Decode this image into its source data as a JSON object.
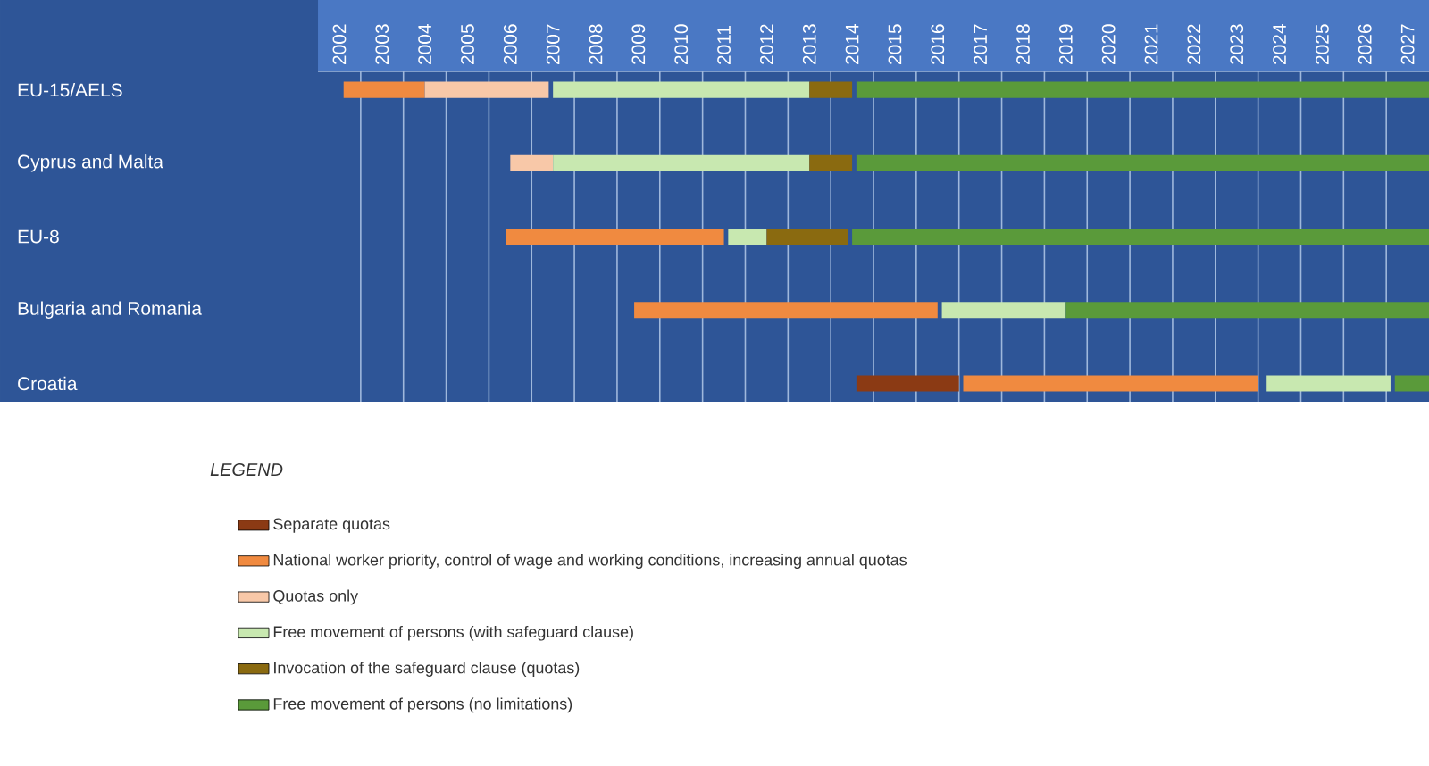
{
  "chart_data": {
    "type": "bar",
    "orientation": "horizontal",
    "categories": [
      "EU-15/AELS",
      "Cyprus and Malta",
      "EU-8",
      "Bulgaria and Romania",
      "Croatia"
    ],
    "series": [
      {
        "name": "Separate quotas",
        "color": "#8b3a14",
        "base": [
          null,
          null,
          null,
          null,
          2014.6
        ],
        "values": [
          null,
          null,
          null,
          null,
          2.4
        ]
      },
      {
        "name": "National worker priority, control of wage and working conditions, increasing annual quotas",
        "color": "#f08a40",
        "base": [
          2002.6,
          null,
          2006.4,
          2009.4,
          2017.1
        ],
        "values": [
          1.9,
          null,
          5.1,
          7.1,
          6.9
        ]
      },
      {
        "name": "Quotas only",
        "color": "#f8c8a8",
        "base": [
          2004.5,
          2006.5,
          null,
          null,
          null
        ],
        "values": [
          2.9,
          1.0,
          null,
          null,
          null
        ]
      },
      {
        "name": "Free movement of persons (with safeguard clause)",
        "color": "#c8e8b0",
        "base": [
          2007.5,
          2007.5,
          2011.6,
          2016.6,
          2024.2
        ],
        "values": [
          6.0,
          6.0,
          0.9,
          2.9,
          2.9
        ]
      },
      {
        "name": "Invocation of the safeguard clause (quotas)",
        "color": "#8a6a10",
        "base": [
          2013.5,
          2013.5,
          2012.5,
          null,
          null
        ],
        "values": [
          1.0,
          1.0,
          1.9,
          null,
          null
        ]
      },
      {
        "name": "Free movement of persons (no limitations)",
        "color": "#5a9a3a",
        "base": [
          2014.6,
          2014.6,
          2014.5,
          2019.5,
          2027.2
        ],
        "values": [
          13.4,
          13.4,
          13.5,
          8.5,
          0.8
        ]
      }
    ],
    "xlim": [
      2002,
      2028
    ],
    "xticks": [
      {
        "value": 2002.5,
        "label": "2002"
      },
      {
        "value": 2003.5,
        "label": "2003"
      },
      {
        "value": 2004.5,
        "label": "2004"
      },
      {
        "value": 2005.5,
        "label": "2005"
      },
      {
        "value": 2006.5,
        "label": "2006"
      },
      {
        "value": 2007.5,
        "label": "2007"
      },
      {
        "value": 2008.5,
        "label": "2008"
      },
      {
        "value": 2009.5,
        "label": "2009"
      },
      {
        "value": 2010.5,
        "label": "2010"
      },
      {
        "value": 2011.5,
        "label": "2011"
      },
      {
        "value": 2012.5,
        "label": "2012"
      },
      {
        "value": 2013.5,
        "label": "2013"
      },
      {
        "value": 2014.5,
        "label": "2014"
      },
      {
        "value": 2015.5,
        "label": "2015"
      },
      {
        "value": 2016.5,
        "label": "2016"
      },
      {
        "value": 2017.5,
        "label": "2017"
      },
      {
        "value": 2018.5,
        "label": "2018"
      },
      {
        "value": 2019.5,
        "label": "2019"
      },
      {
        "value": 2020.5,
        "label": "2020"
      },
      {
        "value": 2021.5,
        "label": "2021"
      },
      {
        "value": 2022.5,
        "label": "2022"
      },
      {
        "value": 2023.5,
        "label": "2023"
      },
      {
        "value": 2024.5,
        "label": "2024"
      },
      {
        "value": 2025.5,
        "label": "2025"
      },
      {
        "value": 2026.5,
        "label": "2026"
      },
      {
        "value": 2027.5,
        "label": "2027"
      },
      {
        "value": 2003,
        "label": null
      },
      {
        "value": 2004,
        "label": null
      },
      {
        "value": 2005,
        "label": null
      },
      {
        "value": 2006,
        "label": null
      },
      {
        "value": 2007,
        "label": null
      },
      {
        "value": 2008,
        "label": null
      },
      {
        "value": 2009,
        "label": null
      },
      {
        "value": 2010,
        "label": null
      },
      {
        "value": 2011,
        "label": null
      },
      {
        "value": 2012,
        "label": null
      },
      {
        "value": 2013,
        "label": null
      },
      {
        "value": 2014,
        "label": null
      },
      {
        "value": 2015,
        "label": null
      },
      {
        "value": 2016,
        "label": null
      },
      {
        "value": 2017,
        "label": null
      },
      {
        "value": 2018,
        "label": null
      },
      {
        "value": 2019,
        "label": null
      },
      {
        "value": 2020,
        "label": null
      },
      {
        "value": 2021,
        "label": null
      },
      {
        "value": 2022,
        "label": null
      },
      {
        "value": 2023,
        "label": null
      },
      {
        "value": 2024,
        "label": null
      },
      {
        "value": 2025,
        "label": null
      },
      {
        "value": 2026,
        "label": null
      },
      {
        "value": 2027,
        "label": null
      }
    ],
    "grid": "x",
    "legend": "bottom",
    "legend_title": "LEGEND"
  }
}
